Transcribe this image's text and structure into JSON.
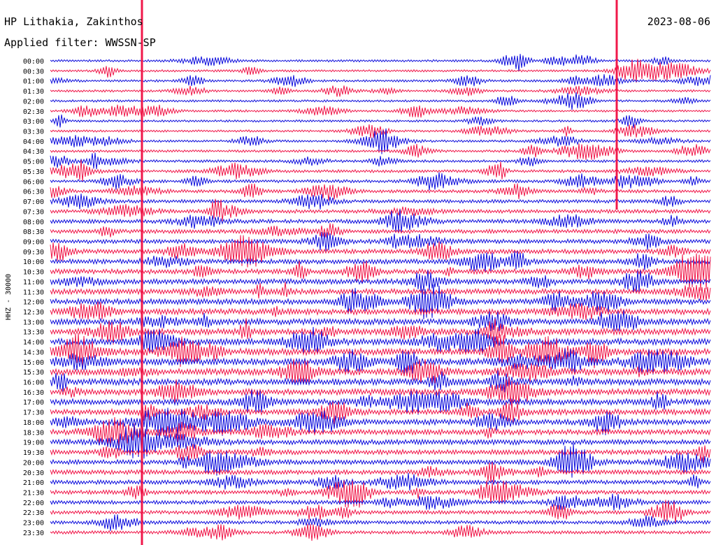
{
  "chart_data": {
    "type": "line",
    "title": "HP Lithakia, Zakinthos",
    "date": "2023-08-06",
    "subtitle": "Applied filter: WWSSN-SP",
    "ylabel": "HHZ - 30000",
    "row_labels": [
      "00:00",
      "00:30",
      "01:00",
      "01:30",
      "02:00",
      "02:30",
      "03:00",
      "03:30",
      "04:00",
      "04:30",
      "05:00",
      "05:30",
      "06:00",
      "06:30",
      "07:00",
      "07:30",
      "08:00",
      "08:30",
      "09:00",
      "09:30",
      "10:00",
      "10:30",
      "11:00",
      "11:30",
      "12:00",
      "12:30",
      "13:00",
      "13:30",
      "14:00",
      "14:30",
      "15:00",
      "15:30",
      "16:00",
      "16:30",
      "17:00",
      "17:30",
      "18:00",
      "18:30",
      "19:00",
      "19:30",
      "20:00",
      "20:30",
      "21:00",
      "21:30",
      "22:00",
      "22:30",
      "23:00",
      "23:30"
    ],
    "series_colors": [
      "#1010dd",
      "#f0184a"
    ],
    "grid": false,
    "legend": "none"
  }
}
